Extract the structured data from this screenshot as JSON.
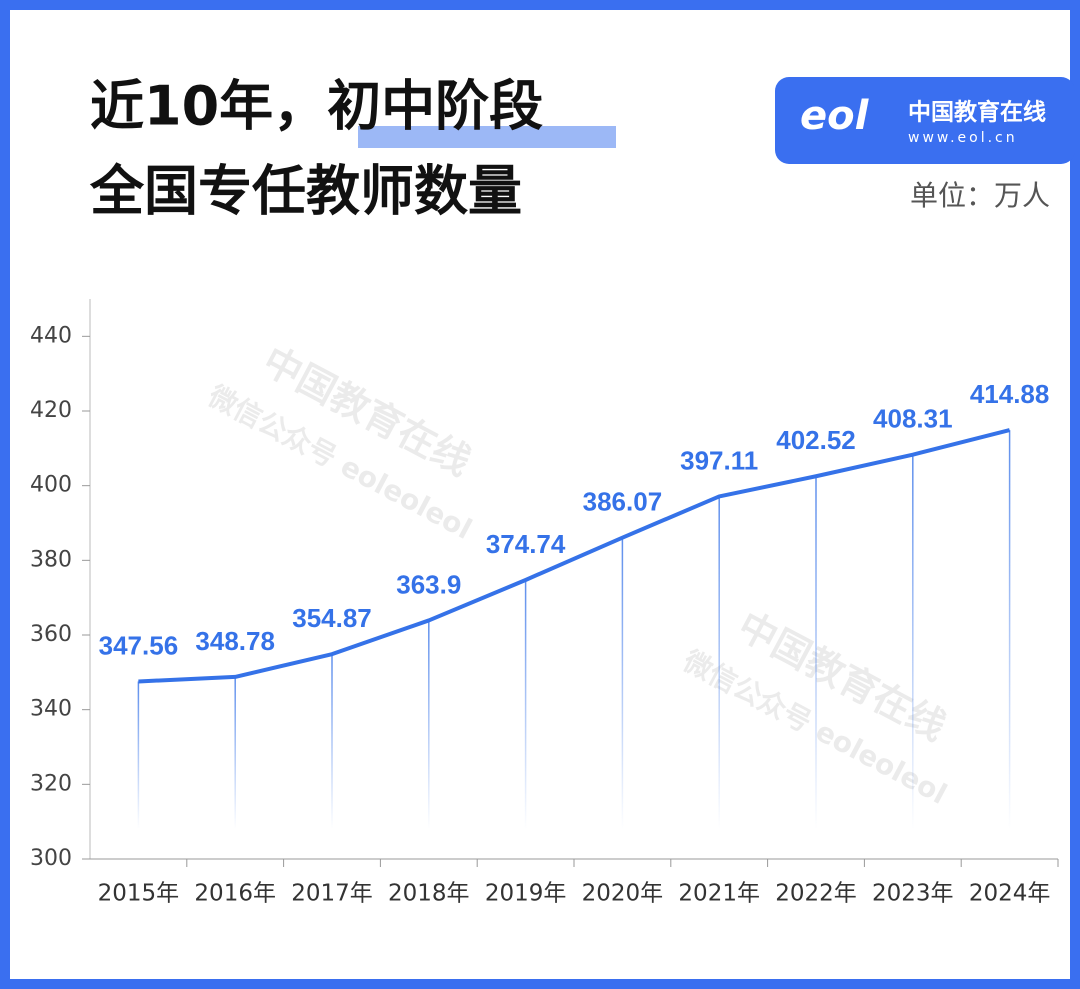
{
  "title": [
    "近10年，初中阶段",
    "全国专任教师数量"
  ],
  "logo": {
    "mark": "eol",
    "name": "中国教育在线",
    "url": "www.eol.cn"
  },
  "unit": "单位：万人",
  "watermark": {
    "name": "中国教育在线",
    "account": "微信公众号 eoleoleol"
  },
  "chart_data": {
    "type": "line",
    "categories": [
      "2015年",
      "2016年",
      "2017年",
      "2018年",
      "2019年",
      "2020年",
      "2021年",
      "2022年",
      "2023年",
      "2024年"
    ],
    "values": [
      347.56,
      348.78,
      354.87,
      363.9,
      374.74,
      386.07,
      397.11,
      402.52,
      408.31,
      414.88
    ],
    "color": "#3572e8",
    "ylim": [
      300,
      450
    ],
    "yticks": [
      300,
      320,
      340,
      360,
      380,
      400,
      420,
      440
    ],
    "grid": false
  }
}
